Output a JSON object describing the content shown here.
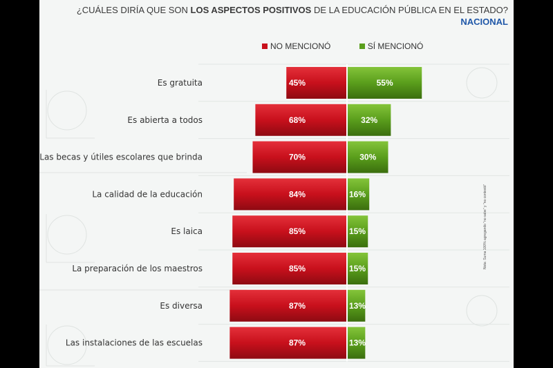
{
  "title": {
    "prefix": "¿CUÁLES DIRÍA QUE SON ",
    "bold": "LOS ASPECTOS POSITIVOS",
    "suffix": " DE LA EDUCACIÓN PÚBLICA EN EL ESTADO?"
  },
  "subtitle": "NACIONAL",
  "side_note": "Nota: Suma 100% agregando \"no sabe\" y \"no contestó\"",
  "colors": {
    "no_mencionó": "#c8101c",
    "sí_mencionó": "#5a9e1c",
    "panel_bg": "#f4f6f5"
  },
  "chart_data": {
    "type": "bar",
    "orientation": "horizontal-diverging",
    "categories": [
      "Es gratuita",
      "Es abierta a todos",
      "Las becas y útiles escolares que brinda",
      "La calidad de la educación",
      "Es laica",
      "La preparación de los maestros",
      "Es diversa",
      "Las instalaciones de las escuelas"
    ],
    "series": [
      {
        "name": "NO MENCIONÓ",
        "values": [
          45,
          68,
          70,
          84,
          85,
          85,
          87,
          87
        ],
        "direction": "left",
        "color": "#c8101c"
      },
      {
        "name": "SÍ MENCIONÓ",
        "values": [
          55,
          32,
          30,
          16,
          15,
          15,
          13,
          13
        ],
        "direction": "right",
        "color": "#5a9e1c"
      }
    ],
    "value_labels": [
      [
        "45%",
        "68%",
        "70%",
        "84%",
        "85%",
        "85%",
        "87%",
        "87%"
      ],
      [
        "55%",
        "32%",
        "30%",
        "16%",
        "15%",
        "15%",
        "13%",
        "13%"
      ]
    ],
    "legend_position": "top",
    "grid": true
  }
}
